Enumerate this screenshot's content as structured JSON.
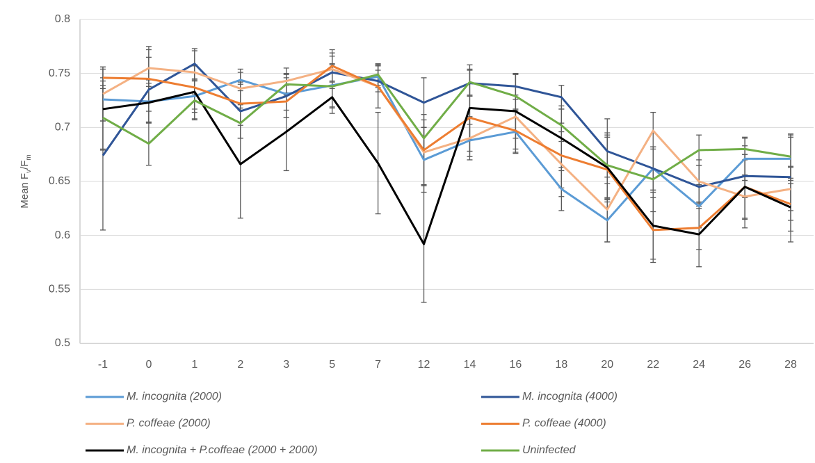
{
  "chart_data": {
    "type": "line",
    "y_label_parts": [
      "Mean F",
      "v",
      "/F",
      "m"
    ],
    "categories": [
      "-1",
      "0",
      "1",
      "2",
      "3",
      "5",
      "7",
      "12",
      "14",
      "16",
      "18",
      "20",
      "22",
      "24",
      "26",
      "28"
    ],
    "ylim": [
      0.5,
      0.8
    ],
    "yticks": [
      0.5,
      0.55,
      0.6,
      0.65,
      0.7,
      0.75,
      0.8
    ],
    "grid": true,
    "legend": "bottom",
    "error_color": "#595959",
    "series": [
      {
        "name": "M. incognita (2000)",
        "color": "#5B9BD5",
        "values": [
          0.726,
          0.724,
          0.729,
          0.744,
          0.731,
          0.739,
          0.747,
          0.67,
          0.688,
          0.696,
          0.643,
          0.614,
          0.662,
          0.627,
          0.671,
          0.671
        ],
        "errors": [
          0.02,
          0.02,
          0.015,
          0.01,
          0.015,
          0.02,
          0.01,
          0.03,
          0.015,
          0.02,
          0.02,
          0.02,
          0.02,
          0.02,
          0.02,
          0.02
        ]
      },
      {
        "name": "M. incognita (4000)",
        "color": "#2F5597",
        "values": [
          0.674,
          0.735,
          0.759,
          0.715,
          0.729,
          0.751,
          0.743,
          0.723,
          0.741,
          0.738,
          0.728,
          0.678,
          0.662,
          0.645,
          0.655,
          0.654
        ],
        "errors": [
          0.069,
          0.03,
          0.014,
          0.025,
          0.02,
          0.015,
          0.01,
          0.023,
          0.012,
          0.012,
          0.011,
          0.03,
          0.02,
          0.02,
          0.02,
          0.04
        ]
      },
      {
        "name": "P. coffeae (2000)",
        "color": "#F4B183",
        "values": [
          0.731,
          0.755,
          0.751,
          0.736,
          0.743,
          0.754,
          0.738,
          0.677,
          0.69,
          0.71,
          0.666,
          0.624,
          0.697,
          0.65,
          0.636,
          0.643
        ],
        "errors": [
          0.025,
          0.017,
          0.02,
          0.015,
          0.012,
          0.015,
          0.02,
          0.03,
          0.02,
          0.02,
          0.03,
          0.03,
          0.017,
          0.02,
          0.02,
          0.02
        ]
      },
      {
        "name": "P. coffeae (4000)",
        "color": "#ED7D31",
        "values": [
          0.746,
          0.745,
          0.737,
          0.722,
          0.724,
          0.757,
          0.738,
          0.679,
          0.709,
          0.697,
          0.674,
          0.661,
          0.605,
          0.607,
          0.645,
          0.629
        ],
        "errors": [
          0.01,
          0.03,
          0.02,
          0.02,
          0.015,
          0.015,
          0.02,
          0.033,
          0.02,
          0.02,
          0.03,
          0.03,
          0.03,
          0.02,
          0.03,
          0.035
        ]
      },
      {
        "name": "M. incognita + P.coffeae (2000 + 2000)",
        "color": "#000000",
        "values": [
          0.717,
          0.723,
          0.733,
          0.666,
          0.696,
          0.728,
          0.667,
          0.592,
          0.718,
          0.715,
          0.69,
          0.663,
          0.609,
          0.601,
          0.645,
          0.626
        ],
        "errors": [
          0.037,
          0.018,
          0.025,
          0.05,
          0.036,
          0.015,
          0.047,
          0.054,
          0.04,
          0.035,
          0.03,
          0.03,
          0.031,
          0.03,
          0.038,
          0.022
        ]
      },
      {
        "name": "Uninfected",
        "color": "#70AD47",
        "values": [
          0.709,
          0.685,
          0.725,
          0.704,
          0.74,
          0.738,
          0.749,
          0.69,
          0.742,
          0.729,
          0.702,
          0.665,
          0.652,
          0.679,
          0.68,
          0.673
        ],
        "errors": [
          0.03,
          0.02,
          0.018,
          0.014,
          0.01,
          0.02,
          0.01,
          0.01,
          0.012,
          0.02,
          0.015,
          0.03,
          0.03,
          0.014,
          0.01,
          0.02
        ]
      }
    ]
  }
}
